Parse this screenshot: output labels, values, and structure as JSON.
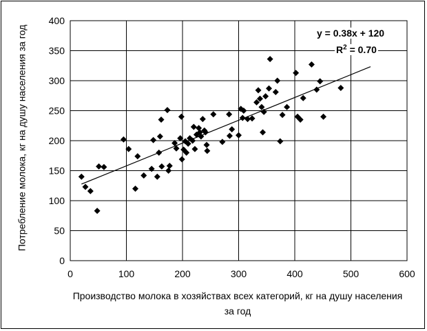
{
  "chart_data": {
    "type": "scatter",
    "xlabel": "Производство молока в хозяйствах всех категорий, кг на душу населения за год",
    "ylabel": "Потребление молока, кг на душу населения за год",
    "xlim": [
      0,
      600
    ],
    "ylim": [
      0,
      400
    ],
    "xticks": [
      "0",
      "100",
      "200",
      "300",
      "400",
      "500",
      "600"
    ],
    "yticks": [
      "0",
      "50",
      "100",
      "150",
      "200",
      "250",
      "300",
      "350",
      "400"
    ],
    "grid": true,
    "marker": "diamond",
    "marker_color": "#000000",
    "trendline": {
      "type": "linear",
      "equation": "y = 0.38x + 120",
      "r2_prefix": "R",
      "r2_exp": "2",
      "r2_value": " = 0.70",
      "slope": 0.38,
      "intercept": 120,
      "x_range": [
        20,
        535
      ]
    },
    "points": [
      [
        20,
        140
      ],
      [
        27,
        123
      ],
      [
        36,
        116
      ],
      [
        48,
        83
      ],
      [
        51,
        157
      ],
      [
        60,
        156
      ],
      [
        95,
        202
      ],
      [
        104,
        186
      ],
      [
        116,
        120
      ],
      [
        120,
        174
      ],
      [
        131,
        142
      ],
      [
        145,
        153
      ],
      [
        148,
        201
      ],
      [
        155,
        140
      ],
      [
        158,
        180
      ],
      [
        160,
        207
      ],
      [
        162,
        235
      ],
      [
        163,
        157
      ],
      [
        173,
        251
      ],
      [
        175,
        150
      ],
      [
        177,
        158
      ],
      [
        186,
        196
      ],
      [
        189,
        187
      ],
      [
        196,
        204
      ],
      [
        198,
        240
      ],
      [
        199,
        169
      ],
      [
        202,
        185
      ],
      [
        205,
        199
      ],
      [
        207,
        180
      ],
      [
        210,
        195
      ],
      [
        213,
        204
      ],
      [
        218,
        200
      ],
      [
        220,
        223
      ],
      [
        222,
        186
      ],
      [
        225,
        210
      ],
      [
        229,
        221
      ],
      [
        231,
        214
      ],
      [
        233,
        207
      ],
      [
        236,
        236
      ],
      [
        239,
        217
      ],
      [
        241,
        214
      ],
      [
        243,
        193
      ],
      [
        244,
        183
      ],
      [
        255,
        244
      ],
      [
        271,
        198
      ],
      [
        283,
        244
      ],
      [
        284,
        208
      ],
      [
        288,
        219
      ],
      [
        300,
        209
      ],
      [
        304,
        253
      ],
      [
        307,
        238
      ],
      [
        309,
        250
      ],
      [
        316,
        236
      ],
      [
        324,
        237
      ],
      [
        332,
        264
      ],
      [
        335,
        284
      ],
      [
        338,
        270
      ],
      [
        341,
        256
      ],
      [
        343,
        214
      ],
      [
        345,
        248
      ],
      [
        348,
        274
      ],
      [
        354,
        287
      ],
      [
        356,
        336
      ],
      [
        366,
        281
      ],
      [
        369,
        300
      ],
      [
        374,
        199
      ],
      [
        378,
        243
      ],
      [
        386,
        256
      ],
      [
        402,
        313
      ],
      [
        405,
        240
      ],
      [
        410,
        235
      ],
      [
        415,
        271
      ],
      [
        430,
        327
      ],
      [
        439,
        285
      ],
      [
        445,
        299
      ],
      [
        451,
        240
      ],
      [
        482,
        288
      ]
    ]
  }
}
